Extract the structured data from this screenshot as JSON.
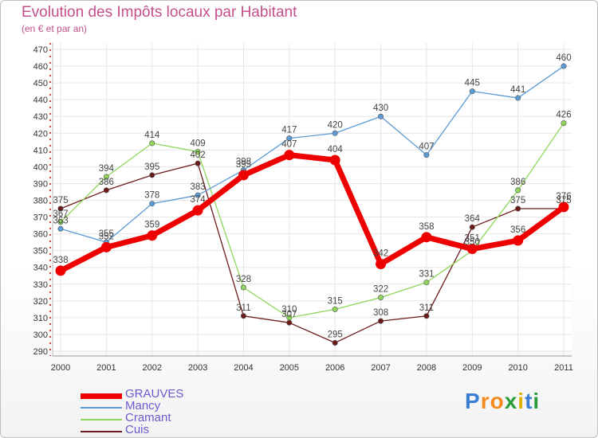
{
  "chart_data": {
    "type": "line",
    "title": "Evolution des Impôts locaux par Habitant",
    "subtitle": "(en € et par an)",
    "categories": [
      "2000",
      "2001",
      "2002",
      "2003",
      "2004",
      "2005",
      "2006",
      "2007",
      "2008",
      "2009",
      "2010",
      "2011"
    ],
    "ylim": [
      290,
      470
    ],
    "yticks": [
      290,
      300,
      310,
      320,
      330,
      340,
      350,
      360,
      370,
      380,
      390,
      400,
      410,
      420,
      430,
      440,
      450,
      460,
      470
    ],
    "grid": true,
    "legend_position": "bottom-left",
    "series": [
      {
        "name": "Cuis",
        "color": "#6b1a1a",
        "values": [
          375,
          386,
          395,
          402,
          311,
          307,
          295,
          308,
          311,
          364,
          375,
          375
        ]
      },
      {
        "name": "Cramant",
        "color": "#8fd65a",
        "values": [
          367,
          394,
          414,
          409,
          328,
          310,
          315,
          322,
          331,
          350,
          386,
          426
        ]
      },
      {
        "name": "Mancy",
        "color": "#5b9bd5",
        "values": [
          363,
          355,
          378,
          383,
          398,
          417,
          420,
          430,
          407,
          445,
          441,
          460
        ]
      },
      {
        "name": "GRAUVES",
        "color": "#ee0000",
        "values": [
          338,
          352,
          359,
          374,
          395,
          407,
          404,
          342,
          358,
          351,
          356,
          376
        ]
      }
    ],
    "legend_order": [
      "GRAUVES",
      "Mancy",
      "Cramant",
      "Cuis"
    ]
  },
  "branding": {
    "logo_text": "Proxiti",
    "letters": [
      "P",
      "r",
      "o",
      "x",
      "i",
      "t",
      "i"
    ],
    "letter_colors": [
      "#3a7fd5",
      "#f28a1e",
      "#f28a1e",
      "#2a9d3a",
      "#e0b000",
      "#3a7fd5",
      "#2a9d3a"
    ]
  }
}
